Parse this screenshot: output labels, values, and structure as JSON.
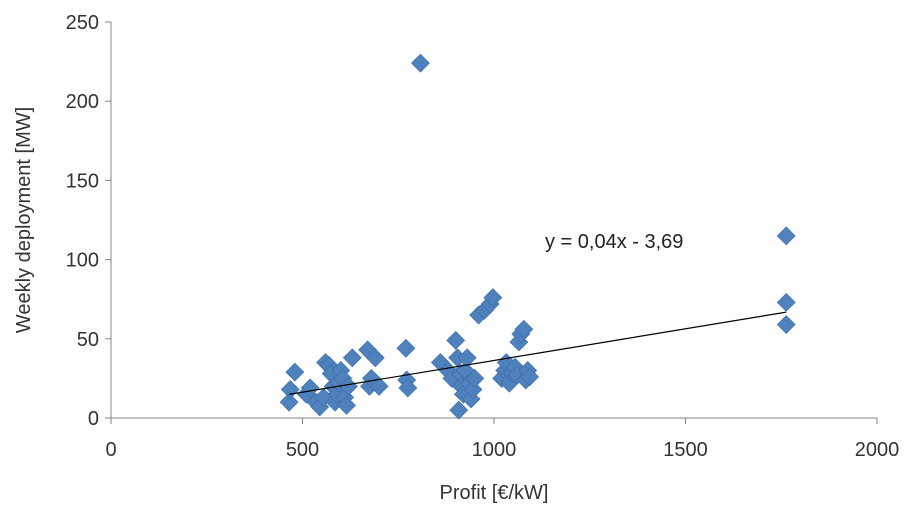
{
  "chart_data": {
    "type": "scatter",
    "xlabel": "Profit [€/kW]",
    "ylabel": "Weekly deployment [MW]",
    "xlim": [
      0,
      2000
    ],
    "ylim": [
      0,
      250
    ],
    "x_ticks": [
      "0",
      "500",
      "1000",
      "1500",
      "2000"
    ],
    "y_ticks": [
      "0",
      "50",
      "100",
      "150",
      "200",
      "250"
    ],
    "grid": false,
    "legend": "none",
    "series": [
      {
        "marker": "diamond",
        "color": "#4F81BD",
        "points": [
          [
            465,
            10
          ],
          [
            468,
            18
          ],
          [
            480,
            29
          ],
          [
            510,
            15
          ],
          [
            520,
            19
          ],
          [
            535,
            10
          ],
          [
            545,
            7
          ],
          [
            555,
            13
          ],
          [
            560,
            35
          ],
          [
            570,
            33
          ],
          [
            575,
            28
          ],
          [
            580,
            20
          ],
          [
            585,
            10
          ],
          [
            590,
            15
          ],
          [
            595,
            22
          ],
          [
            600,
            30
          ],
          [
            605,
            25
          ],
          [
            610,
            13
          ],
          [
            615,
            8
          ],
          [
            620,
            20
          ],
          [
            630,
            38
          ],
          [
            670,
            43
          ],
          [
            675,
            20
          ],
          [
            680,
            25
          ],
          [
            690,
            38
          ],
          [
            700,
            20
          ],
          [
            770,
            44
          ],
          [
            772,
            24
          ],
          [
            775,
            19
          ],
          [
            808,
            224
          ],
          [
            860,
            35
          ],
          [
            880,
            30
          ],
          [
            890,
            25
          ],
          [
            900,
            49
          ],
          [
            905,
            38
          ],
          [
            908,
            5
          ],
          [
            912,
            28
          ],
          [
            915,
            20
          ],
          [
            920,
            15
          ],
          [
            925,
            30
          ],
          [
            930,
            38
          ],
          [
            935,
            22
          ],
          [
            940,
            12
          ],
          [
            945,
            18
          ],
          [
            950,
            25
          ],
          [
            960,
            65
          ],
          [
            975,
            68
          ],
          [
            990,
            72
          ],
          [
            997,
            76
          ],
          [
            1020,
            25
          ],
          [
            1028,
            30
          ],
          [
            1032,
            35
          ],
          [
            1040,
            22
          ],
          [
            1048,
            28
          ],
          [
            1055,
            32
          ],
          [
            1060,
            27
          ],
          [
            1065,
            48
          ],
          [
            1070,
            53
          ],
          [
            1078,
            56
          ],
          [
            1083,
            24
          ],
          [
            1088,
            30
          ],
          [
            1093,
            26
          ],
          [
            1763,
            115
          ],
          [
            1763,
            73
          ],
          [
            1763,
            59
          ]
        ]
      }
    ],
    "trendline": {
      "equation": "y = 0,04x - 3,69",
      "slope": 0.04,
      "intercept": -3.69,
      "x_range": [
        465,
        1763
      ],
      "color": "#000000"
    }
  }
}
